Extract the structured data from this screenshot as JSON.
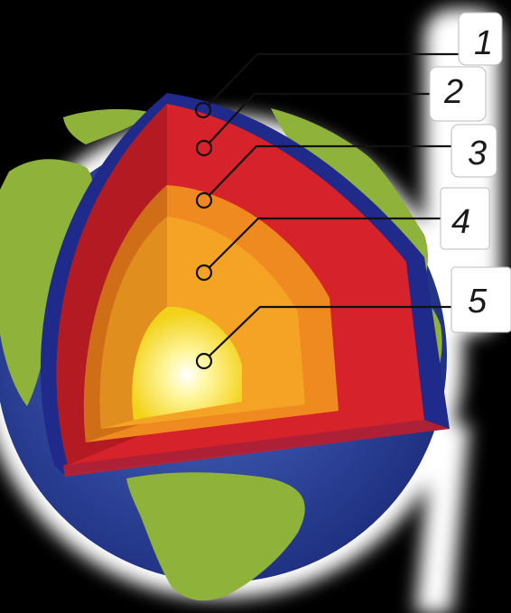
{
  "labels": [
    {
      "id": 1,
      "text": "1"
    },
    {
      "id": 2,
      "text": "2"
    },
    {
      "id": 3,
      "text": "3"
    },
    {
      "id": 4,
      "text": "4"
    },
    {
      "id": 5,
      "text": "5"
    }
  ],
  "colors": {
    "background": "#000000",
    "ocean": "#2f49a0",
    "land": "#8fb23a",
    "crust": "#1f2a8a",
    "mantle": "#d6222a",
    "outer_core": "#ee8a1f",
    "inner_core_edge": "#f0a226",
    "inner_core": "#fff23a",
    "glow": "#ffffff"
  }
}
